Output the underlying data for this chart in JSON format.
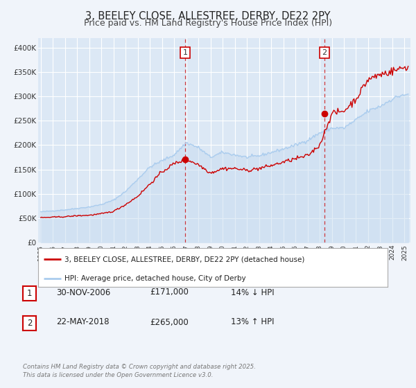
{
  "title": "3, BEELEY CLOSE, ALLESTREE, DERBY, DE22 2PY",
  "subtitle": "Price paid vs. HM Land Registry's House Price Index (HPI)",
  "background_color": "#f0f4fa",
  "plot_bg_color": "#dce8f5",
  "grid_color": "#ffffff",
  "red_color": "#cc0000",
  "blue_color": "#aaccee",
  "blue_fill_color": "#c8dcf0",
  "ylim": [
    0,
    420000
  ],
  "yticks": [
    0,
    50000,
    100000,
    150000,
    200000,
    250000,
    300000,
    350000,
    400000
  ],
  "ytick_labels": [
    "£0",
    "£50K",
    "£100K",
    "£150K",
    "£200K",
    "£250K",
    "£300K",
    "£350K",
    "£400K"
  ],
  "xlim_start": 1994.8,
  "xlim_end": 2025.5,
  "xticks": [
    1995,
    1996,
    1997,
    1998,
    1999,
    2000,
    2001,
    2002,
    2003,
    2004,
    2005,
    2006,
    2007,
    2008,
    2009,
    2010,
    2011,
    2012,
    2013,
    2014,
    2015,
    2016,
    2017,
    2018,
    2019,
    2020,
    2021,
    2022,
    2023,
    2024,
    2025
  ],
  "marker1_x": 2006.92,
  "marker1_y": 171000,
  "marker2_x": 2018.39,
  "marker2_y": 265000,
  "vline1_x": 2006.92,
  "vline2_x": 2018.39,
  "legend_red_label": "3, BEELEY CLOSE, ALLESTREE, DERBY, DE22 2PY (detached house)",
  "legend_blue_label": "HPI: Average price, detached house, City of Derby",
  "table_rows": [
    {
      "num": "1",
      "date": "30-NOV-2006",
      "price": "£171,000",
      "hpi": "14% ↓ HPI"
    },
    {
      "num": "2",
      "date": "22-MAY-2018",
      "price": "£265,000",
      "hpi": "13% ↑ HPI"
    }
  ],
  "footer": "Contains HM Land Registry data © Crown copyright and database right 2025.\nThis data is licensed under the Open Government Licence v3.0.",
  "title_fontsize": 10.5,
  "subtitle_fontsize": 9
}
